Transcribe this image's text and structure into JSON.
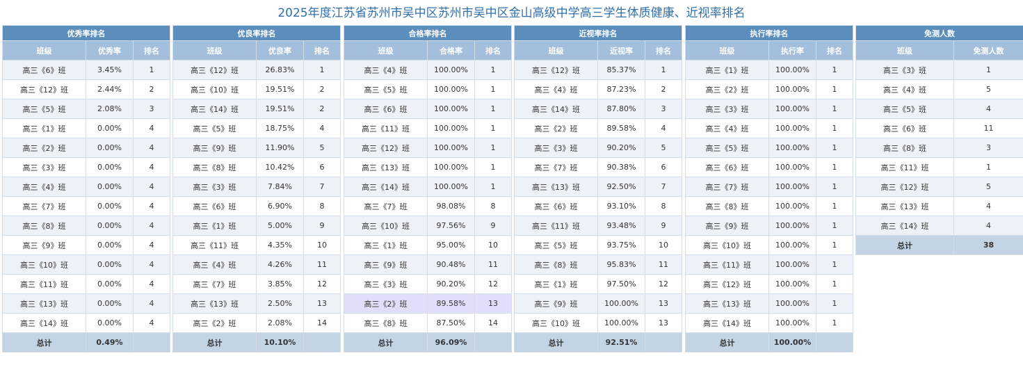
{
  "header": {
    "title": "2025年度江苏省苏州市吴中区苏州市吴中区金山高级中学高三学生体质健康、近视率排名"
  },
  "tables": [
    {
      "title": "优秀率排名",
      "columns": [
        "班级",
        "优秀率",
        "排名"
      ],
      "rows": [
        [
          "高三《6》班",
          "3.45%",
          "1"
        ],
        [
          "高三《12》班",
          "2.44%",
          "2"
        ],
        [
          "高三《5》班",
          "2.08%",
          "3"
        ],
        [
          "高三《1》班",
          "0.00%",
          "4"
        ],
        [
          "高三《2》班",
          "0.00%",
          "4"
        ],
        [
          "高三《3》班",
          "0.00%",
          "4"
        ],
        [
          "高三《4》班",
          "0.00%",
          "4"
        ],
        [
          "高三《7》班",
          "0.00%",
          "4"
        ],
        [
          "高三《8》班",
          "0.00%",
          "4"
        ],
        [
          "高三《9》班",
          "0.00%",
          "4"
        ],
        [
          "高三《10》班",
          "0.00%",
          "4"
        ],
        [
          "高三《11》班",
          "0.00%",
          "4"
        ],
        [
          "高三《13》班",
          "0.00%",
          "4"
        ],
        [
          "高三《14》班",
          "0.00%",
          "4"
        ]
      ],
      "total": {
        "label": "总计",
        "value": "0.49%"
      }
    },
    {
      "title": "优良率排名",
      "columns": [
        "班级",
        "优良率",
        "排名"
      ],
      "rows": [
        [
          "高三《12》班",
          "26.83%",
          "1"
        ],
        [
          "高三《10》班",
          "19.51%",
          "2"
        ],
        [
          "高三《14》班",
          "19.51%",
          "2"
        ],
        [
          "高三《5》班",
          "18.75%",
          "4"
        ],
        [
          "高三《9》班",
          "11.90%",
          "5"
        ],
        [
          "高三《8》班",
          "10.42%",
          "6"
        ],
        [
          "高三《3》班",
          "7.84%",
          "7"
        ],
        [
          "高三《6》班",
          "6.90%",
          "8"
        ],
        [
          "高三《1》班",
          "5.00%",
          "9"
        ],
        [
          "高三《11》班",
          "4.35%",
          "10"
        ],
        [
          "高三《4》班",
          "4.26%",
          "11"
        ],
        [
          "高三《7》班",
          "3.85%",
          "12"
        ],
        [
          "高三《13》班",
          "2.50%",
          "13"
        ],
        [
          "高三《2》班",
          "2.08%",
          "14"
        ]
      ],
      "total": {
        "label": "总计",
        "value": "10.10%"
      }
    },
    {
      "title": "合格率排名",
      "columns": [
        "班级",
        "合格率",
        "排名"
      ],
      "highlighted_row": 12,
      "rows": [
        [
          "高三《4》班",
          "100.00%",
          "1"
        ],
        [
          "高三《5》班",
          "100.00%",
          "1"
        ],
        [
          "高三《6》班",
          "100.00%",
          "1"
        ],
        [
          "高三《11》班",
          "100.00%",
          "1"
        ],
        [
          "高三《12》班",
          "100.00%",
          "1"
        ],
        [
          "高三《13》班",
          "100.00%",
          "1"
        ],
        [
          "高三《14》班",
          "100.00%",
          "1"
        ],
        [
          "高三《7》班",
          "98.08%",
          "8"
        ],
        [
          "高三《10》班",
          "97.56%",
          "9"
        ],
        [
          "高三《1》班",
          "95.00%",
          "10"
        ],
        [
          "高三《9》班",
          "90.48%",
          "11"
        ],
        [
          "高三《3》班",
          "90.20%",
          "12"
        ],
        [
          "高三《2》班",
          "89.58%",
          "13"
        ],
        [
          "高三《8》班",
          "87.50%",
          "14"
        ]
      ],
      "total": {
        "label": "总计",
        "value": "96.09%"
      }
    },
    {
      "title": "近视率排名",
      "columns": [
        "班级",
        "近视率",
        "排名"
      ],
      "rows": [
        [
          "高三《12》班",
          "85.37%",
          "1"
        ],
        [
          "高三《4》班",
          "87.23%",
          "2"
        ],
        [
          "高三《14》班",
          "87.80%",
          "3"
        ],
        [
          "高三《2》班",
          "89.58%",
          "4"
        ],
        [
          "高三《3》班",
          "90.20%",
          "5"
        ],
        [
          "高三《7》班",
          "90.38%",
          "6"
        ],
        [
          "高三《13》班",
          "92.50%",
          "7"
        ],
        [
          "高三《6》班",
          "93.10%",
          "8"
        ],
        [
          "高三《11》班",
          "93.48%",
          "9"
        ],
        [
          "高三《5》班",
          "93.75%",
          "10"
        ],
        [
          "高三《8》班",
          "95.83%",
          "11"
        ],
        [
          "高三《1》班",
          "97.50%",
          "12"
        ],
        [
          "高三《9》班",
          "100.00%",
          "13"
        ],
        [
          "高三《10》班",
          "100.00%",
          "13"
        ]
      ],
      "total": {
        "label": "总计",
        "value": "92.51%"
      }
    },
    {
      "title": "执行率排名",
      "columns": [
        "班级",
        "执行率",
        "排名"
      ],
      "rows": [
        [
          "高三《1》班",
          "100.00%",
          "1"
        ],
        [
          "高三《2》班",
          "100.00%",
          "1"
        ],
        [
          "高三《3》班",
          "100.00%",
          "1"
        ],
        [
          "高三《4》班",
          "100.00%",
          "1"
        ],
        [
          "高三《5》班",
          "100.00%",
          "1"
        ],
        [
          "高三《6》班",
          "100.00%",
          "1"
        ],
        [
          "高三《7》班",
          "100.00%",
          "1"
        ],
        [
          "高三《8》班",
          "100.00%",
          "1"
        ],
        [
          "高三《9》班",
          "100.00%",
          "1"
        ],
        [
          "高三《10》班",
          "100.00%",
          "1"
        ],
        [
          "高三《11》班",
          "100.00%",
          "1"
        ],
        [
          "高三《12》班",
          "100.00%",
          "1"
        ],
        [
          "高三《13》班",
          "100.00%",
          "1"
        ],
        [
          "高三《14》班",
          "100.00%",
          "1"
        ]
      ],
      "total": {
        "label": "总计",
        "value": "100.00%"
      }
    },
    {
      "title": "免测人数",
      "columns": [
        "班级",
        "免测人数"
      ],
      "rows": [
        [
          "高三《3》班",
          "1"
        ],
        [
          "高三《4》班",
          "5"
        ],
        [
          "高三《5》班",
          "4"
        ],
        [
          "高三《6》班",
          "11"
        ],
        [
          "高三《8》班",
          "3"
        ],
        [
          "高三《11》班",
          "1"
        ],
        [
          "高三《12》班",
          "5"
        ],
        [
          "高三《13》班",
          "4"
        ],
        [
          "高三《14》班",
          "4"
        ]
      ],
      "total": {
        "label": "总计",
        "value": "38"
      }
    }
  ]
}
